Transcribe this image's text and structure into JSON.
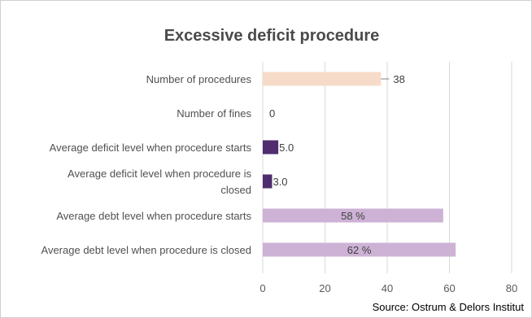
{
  "chart_data": {
    "type": "bar",
    "orientation": "horizontal",
    "title": "Excessive deficit procedure",
    "categories": [
      [
        "Number of procedures"
      ],
      [
        "Number of fines"
      ],
      [
        "Average deficit level when procedure starts"
      ],
      [
        "Average deficit level when procedure is",
        "closed"
      ],
      [
        "Average debt level when procedure starts"
      ],
      [
        "Average debt level when procedure is closed"
      ]
    ],
    "values": [
      38,
      0,
      5.0,
      3.0,
      58,
      62
    ],
    "data_labels": [
      "38",
      "0",
      "5.0",
      "3.0",
      "58 %",
      "62 %"
    ],
    "label_position": [
      "outside-callout",
      "outside",
      "outside",
      "outside",
      "inside",
      "inside"
    ],
    "colors": [
      "#f6dcc8",
      "#4f2d6e",
      "#4f2d6e",
      "#4f2d6e",
      "#cdb2d6",
      "#cdb2d6"
    ],
    "xlim": [
      0,
      80
    ],
    "xticks": [
      0,
      20,
      40,
      60,
      80
    ],
    "grid": true,
    "gridline_color": "#d9d9d9",
    "source": "Source: Ostrum & Delors Institut"
  }
}
